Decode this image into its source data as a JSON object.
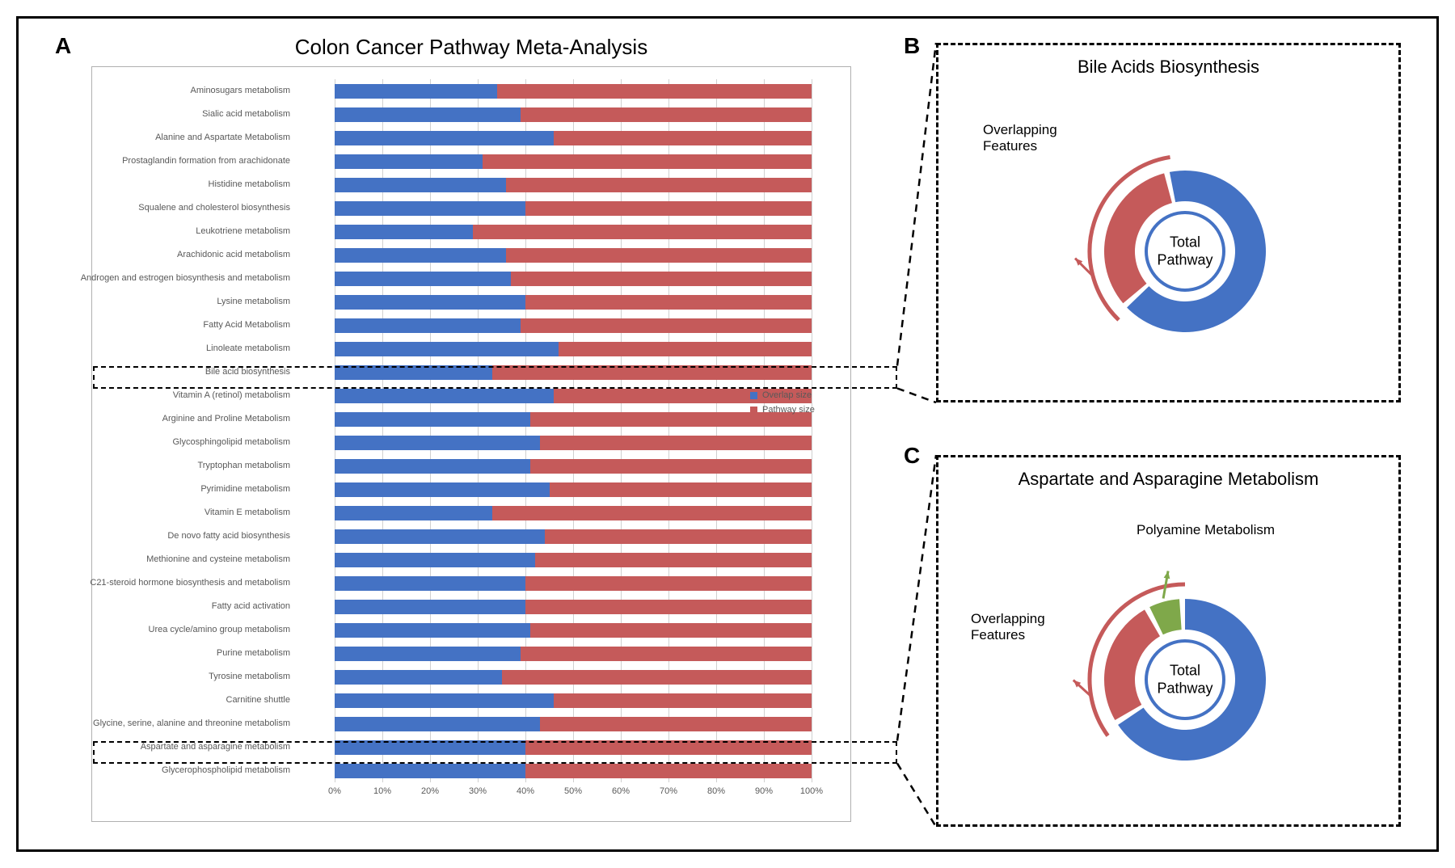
{
  "colors": {
    "overlap": "#4472c4",
    "pathway": "#c55a5a",
    "polyamine": "#7fa84a",
    "border": "#000000",
    "grid": "#d0d0d0",
    "text_muted": "#595959"
  },
  "panel_a": {
    "title": "Colon Cancer Pathway Meta-Analysis",
    "x_ticks": [
      "0%",
      "10%",
      "20%",
      "30%",
      "40%",
      "50%",
      "60%",
      "70%",
      "80%",
      "90%",
      "100%"
    ],
    "legend": {
      "overlap": "Overlap size",
      "pathway": "Pathway size"
    },
    "bars": [
      {
        "label": "Aminosugars metabolism",
        "overlap_pct": 34
      },
      {
        "label": "Sialic acid metabolism",
        "overlap_pct": 39
      },
      {
        "label": "Alanine and Aspartate Metabolism",
        "overlap_pct": 46
      },
      {
        "label": "Prostaglandin formation from arachidonate",
        "overlap_pct": 31
      },
      {
        "label": "Histidine metabolism",
        "overlap_pct": 36
      },
      {
        "label": "Squalene and cholesterol biosynthesis",
        "overlap_pct": 40
      },
      {
        "label": "Leukotriene metabolism",
        "overlap_pct": 29
      },
      {
        "label": "Arachidonic acid metabolism",
        "overlap_pct": 36
      },
      {
        "label": "Androgen and estrogen biosynthesis and metabolism",
        "overlap_pct": 37
      },
      {
        "label": "Lysine metabolism",
        "overlap_pct": 40
      },
      {
        "label": "Fatty Acid Metabolism",
        "overlap_pct": 39
      },
      {
        "label": "Linoleate metabolism",
        "overlap_pct": 47
      },
      {
        "label": "Bile acid biosynthesis",
        "overlap_pct": 33
      },
      {
        "label": "Vitamin A (retinol) metabolism",
        "overlap_pct": 46
      },
      {
        "label": "Arginine and Proline Metabolism",
        "overlap_pct": 41
      },
      {
        "label": "Glycosphingolipid metabolism",
        "overlap_pct": 43
      },
      {
        "label": "Tryptophan metabolism",
        "overlap_pct": 41
      },
      {
        "label": "Pyrimidine metabolism",
        "overlap_pct": 45
      },
      {
        "label": "Vitamin E metabolism",
        "overlap_pct": 33
      },
      {
        "label": "De novo fatty acid biosynthesis",
        "overlap_pct": 44
      },
      {
        "label": "Methionine and cysteine metabolism",
        "overlap_pct": 42
      },
      {
        "label": "C21-steroid hormone biosynthesis and metabolism",
        "overlap_pct": 40
      },
      {
        "label": "Fatty acid activation",
        "overlap_pct": 40
      },
      {
        "label": "Urea cycle/amino group metabolism",
        "overlap_pct": 41
      },
      {
        "label": "Purine metabolism",
        "overlap_pct": 39
      },
      {
        "label": "Tyrosine metabolism",
        "overlap_pct": 35
      },
      {
        "label": "Carnitine shuttle",
        "overlap_pct": 46
      },
      {
        "label": "Glycine, serine, alanine and threonine metabolism",
        "overlap_pct": 43
      },
      {
        "label": "Aspartate and asparagine metabolism",
        "overlap_pct": 40
      },
      {
        "label": "Glycerophospholipid metabolism",
        "overlap_pct": 40
      }
    ],
    "highlight_rows": [
      12,
      28
    ]
  },
  "panel_b": {
    "title": "Bile Acids Biosynthesis",
    "overlap_label": "Overlapping\nFeatures",
    "center_label": "Total\nPathway",
    "segments": {
      "overlap_deg": 115,
      "total_pathway_deg": 360
    },
    "donut": {
      "outer_r": 100,
      "inner_r": 62,
      "gap_deg": 4
    }
  },
  "panel_c": {
    "title": "Aspartate and Asparagine Metabolism",
    "overlap_label": "Overlapping\nFeatures",
    "polyamine_label": "Polyamine Metabolism",
    "center_label": "Total\nPathway",
    "segments": {
      "overlap_deg": 90,
      "polyamine_deg": 22,
      "total_pathway_deg": 360
    },
    "donut": {
      "outer_r": 100,
      "inner_r": 62,
      "gap_deg": 4
    }
  },
  "panel_labels": {
    "a": "A",
    "b": "B",
    "c": "C"
  }
}
